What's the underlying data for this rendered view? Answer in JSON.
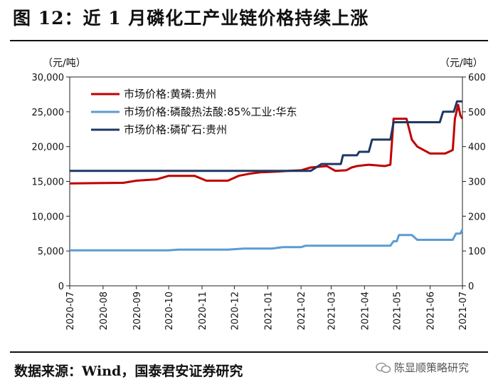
{
  "figure": {
    "title": "图 12：近 1 月磷化工产业链价格持续上涨",
    "source": "数据来源：Wind，国泰君安证券研究",
    "watermark": "陈显顺策略研究"
  },
  "chart_data": {
    "type": "line",
    "title": "",
    "xlabel": "",
    "left_unit": "（元/吨）",
    "right_unit": "（元/吨）",
    "x_ticks": [
      "2020-07",
      "2020-08",
      "2020-09",
      "2020-10",
      "2020-11",
      "2020-12",
      "2021-01",
      "2021-02",
      "2021-03",
      "2021-04",
      "2021-05",
      "2021-06",
      "2021-07"
    ],
    "y_left": {
      "min": 0,
      "max": 30000,
      "ticks": [
        "0",
        "5,000",
        "10,000",
        "15,000",
        "20,000",
        "25,000",
        "30,000"
      ]
    },
    "y_right": {
      "min": 0,
      "max": 600,
      "ticks": [
        "0",
        "100",
        "200",
        "300",
        "400",
        "500",
        "600"
      ]
    },
    "legend_position": "top-left",
    "grid": false,
    "series": [
      {
        "name": "市场价格:黄磷:贵州",
        "axis": "left",
        "color": "#c00000",
        "points": [
          [
            "2020-07-01",
            14700
          ],
          [
            "2020-08-20",
            14800
          ],
          [
            "2020-09-01",
            15100
          ],
          [
            "2020-09-20",
            15300
          ],
          [
            "2020-10-01",
            15800
          ],
          [
            "2020-10-25",
            15800
          ],
          [
            "2020-11-05",
            15100
          ],
          [
            "2020-11-25",
            15100
          ],
          [
            "2020-12-05",
            15800
          ],
          [
            "2020-12-15",
            16100
          ],
          [
            "2020-12-25",
            16300
          ],
          [
            "2021-01-10",
            16400
          ],
          [
            "2021-01-20",
            16500
          ],
          [
            "2021-02-01",
            16600
          ],
          [
            "2021-02-10",
            17000
          ],
          [
            "2021-02-25",
            17200
          ],
          [
            "2021-03-05",
            16500
          ],
          [
            "2021-03-15",
            16600
          ],
          [
            "2021-03-20",
            17000
          ],
          [
            "2021-03-25",
            17200
          ],
          [
            "2021-04-05",
            17400
          ],
          [
            "2021-04-20",
            17200
          ],
          [
            "2021-04-25",
            17400
          ],
          [
            "2021-04-28",
            24000
          ],
          [
            "2021-05-10",
            24000
          ],
          [
            "2021-05-15",
            21000
          ],
          [
            "2021-05-20",
            20000
          ],
          [
            "2021-06-01",
            19000
          ],
          [
            "2021-06-15",
            19000
          ],
          [
            "2021-06-22",
            19500
          ],
          [
            "2021-06-24",
            24000
          ],
          [
            "2021-06-27",
            26000
          ],
          [
            "2021-06-29",
            24500
          ],
          [
            "2021-07-01",
            24000
          ]
        ]
      },
      {
        "name": "市场价格:磷酸热法酸:85%工业:华东",
        "axis": "right",
        "color": "#5b9bd5",
        "points": [
          [
            "2020-07-01",
            102
          ],
          [
            "2020-10-01",
            102
          ],
          [
            "2020-10-10",
            104
          ],
          [
            "2020-11-25",
            104
          ],
          [
            "2020-12-10",
            107
          ],
          [
            "2021-01-05",
            107
          ],
          [
            "2021-01-15",
            111
          ],
          [
            "2021-02-01",
            111
          ],
          [
            "2021-02-05",
            115
          ],
          [
            "2021-04-25",
            115
          ],
          [
            "2021-04-28",
            128
          ],
          [
            "2021-05-01",
            128
          ],
          [
            "2021-05-03",
            146
          ],
          [
            "2021-05-15",
            146
          ],
          [
            "2021-05-20",
            132
          ],
          [
            "2021-06-10",
            132
          ],
          [
            "2021-06-22",
            132
          ],
          [
            "2021-06-25",
            150
          ],
          [
            "2021-06-29",
            150
          ],
          [
            "2021-07-01",
            162
          ]
        ]
      },
      {
        "name": "市场价格:磷矿石:贵州",
        "axis": "right",
        "color": "#1f3864",
        "points": [
          [
            "2020-07-01",
            330
          ],
          [
            "2021-02-10",
            330
          ],
          [
            "2021-02-20",
            350
          ],
          [
            "2021-03-10",
            350
          ],
          [
            "2021-03-12",
            375
          ],
          [
            "2021-03-25",
            375
          ],
          [
            "2021-03-27",
            385
          ],
          [
            "2021-04-05",
            385
          ],
          [
            "2021-04-08",
            420
          ],
          [
            "2021-04-25",
            420
          ],
          [
            "2021-04-28",
            470
          ],
          [
            "2021-06-10",
            470
          ],
          [
            "2021-06-13",
            500
          ],
          [
            "2021-06-23",
            500
          ],
          [
            "2021-06-26",
            530
          ],
          [
            "2021-07-01",
            530
          ]
        ]
      }
    ]
  }
}
